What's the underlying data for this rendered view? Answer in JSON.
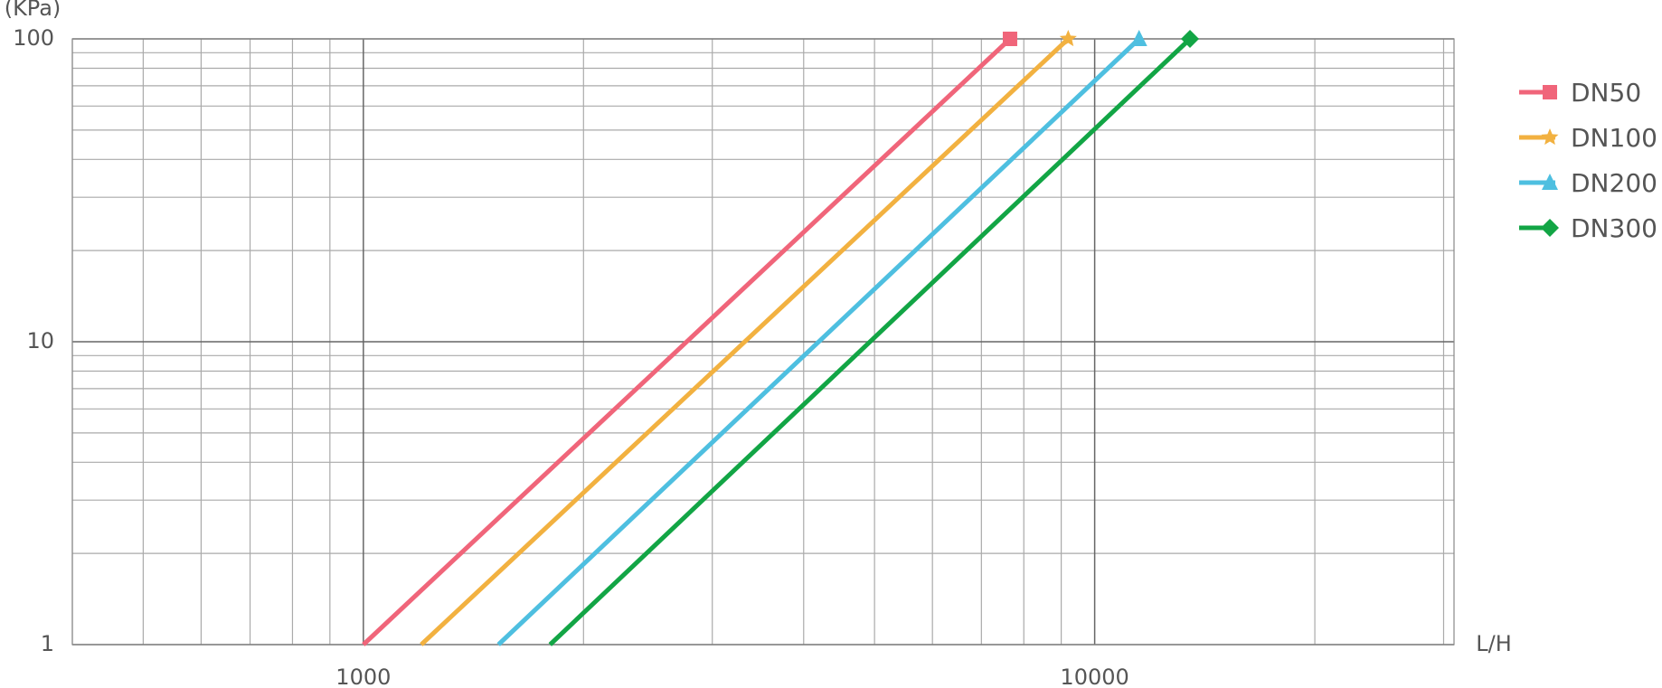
{
  "chart_data": {
    "type": "line",
    "xlabel": "L/H",
    "ylabel": "(KPa)",
    "log_x": true,
    "log_y": true,
    "grid": true,
    "legend": "right",
    "xlim": [
      400,
      31000
    ],
    "ylim": [
      1,
      100
    ],
    "xticks": [
      1000,
      10000
    ],
    "yticks": [
      1,
      10,
      100
    ],
    "x_minor_ticks": [
      400,
      500,
      600,
      700,
      800,
      900,
      2000,
      3000,
      4000,
      5000,
      6000,
      7000,
      8000,
      9000,
      20000,
      30000
    ],
    "y_minor_ticks": [
      2,
      3,
      4,
      5,
      6,
      7,
      8,
      9,
      20,
      30,
      40,
      50,
      60,
      70,
      80,
      90
    ],
    "series": [
      {
        "name": "DN50",
        "color": "#f0657a",
        "marker": "square",
        "x": [
          1000,
          7660
        ],
        "values": [
          1,
          100
        ]
      },
      {
        "name": "DN100",
        "color": "#f2b140",
        "marker": "star",
        "x": [
          1200,
          9200
        ],
        "values": [
          1,
          100
        ]
      },
      {
        "name": "DN200",
        "color": "#4ebfe0",
        "marker": "triangle",
        "x": [
          1530,
          11500
        ],
        "values": [
          1,
          100
        ]
      },
      {
        "name": "DN300",
        "color": "#12a545",
        "marker": "diamond",
        "x": [
          1800,
          13500
        ],
        "values": [
          1,
          100
        ]
      }
    ]
  }
}
